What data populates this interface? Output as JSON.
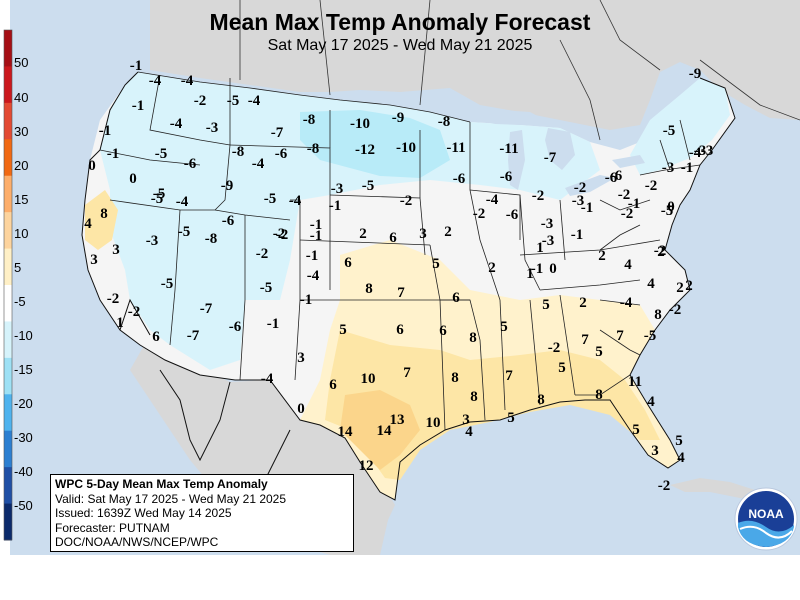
{
  "header": {
    "title": "Mean Max Temp Anomaly Forecast",
    "subtitle": "Sat May 17 2025 - Wed May 21 2025"
  },
  "legend": {
    "ticks": [
      "50",
      "40",
      "30",
      "20",
      "15",
      "10",
      "5",
      "-5",
      "-10",
      "-15",
      "-20",
      "-30",
      "-40",
      "-50"
    ],
    "colors": [
      "#a50f15",
      "#cb181d",
      "#e34a33",
      "#f16913",
      "#fdae6b",
      "#fdd49e",
      "#fff0c6",
      "#ffffff",
      "#d6f3fb",
      "#9ee1f5",
      "#4fb3ee",
      "#2c7fd1",
      "#1f4fa5",
      "#0b2a6b"
    ]
  },
  "map_colors": {
    "ocean": "#ccddee",
    "foreign_land": "#d8d8d8",
    "conus_neutral": "#f5f5f5",
    "cool_light": "#d8f3fb",
    "cool_mid": "#b8ebf8",
    "warm_light": "#fff2cc",
    "warm_mid": "#fde6a6",
    "warm_high": "#fbd58b"
  },
  "anomaly_values": [
    {
      "v": "-1"
    },
    {
      "v": "-4"
    },
    {
      "v": "-4"
    },
    {
      "v": "-1"
    },
    {
      "v": "-2"
    },
    {
      "v": "-5"
    },
    {
      "v": "-4"
    },
    {
      "v": "-1"
    },
    {
      "v": "-4"
    },
    {
      "v": "-3"
    },
    {
      "v": "-7"
    },
    {
      "v": "-8"
    },
    {
      "v": "-10"
    },
    {
      "v": "-9"
    },
    {
      "v": "-8"
    },
    {
      "v": "-1"
    },
    {
      "v": "-5"
    },
    {
      "v": "-6"
    },
    {
      "v": "-8"
    },
    {
      "v": "-6"
    },
    {
      "v": "-8"
    },
    {
      "v": "-12"
    },
    {
      "v": "-10"
    },
    {
      "v": "-11"
    },
    {
      "v": "-11"
    },
    {
      "v": "-7"
    },
    {
      "v": "-5"
    },
    {
      "v": "-9"
    },
    {
      "v": "-4"
    },
    {
      "v": "-6"
    },
    {
      "v": "-6"
    },
    {
      "v": "-2"
    },
    {
      "v": "-3"
    },
    {
      "v": "-3"
    },
    {
      "v": "0"
    },
    {
      "v": "0"
    },
    {
      "v": "-5"
    },
    {
      "v": "-9"
    },
    {
      "v": "-5"
    },
    {
      "v": "-4"
    },
    {
      "v": "-3"
    },
    {
      "v": "-5"
    },
    {
      "v": "-2"
    },
    {
      "v": "-4"
    },
    {
      "v": "-2"
    },
    {
      "v": "-6"
    },
    {
      "v": "-2"
    },
    {
      "v": "-6"
    },
    {
      "v": "-5"
    },
    {
      "v": "-4"
    },
    {
      "v": "-3"
    },
    {
      "v": "-6"
    },
    {
      "v": "-1"
    },
    {
      "v": "-2"
    },
    {
      "v": "-2"
    },
    {
      "v": "-1"
    },
    {
      "v": "-3"
    },
    {
      "v": "-2"
    },
    {
      "v": "-1"
    },
    {
      "v": "0"
    },
    {
      "v": "-5"
    },
    {
      "v": "-1"
    },
    {
      "v": "-2"
    },
    {
      "v": "-4"
    },
    {
      "v": "-1"
    },
    {
      "v": "-3"
    },
    {
      "v": "-1"
    },
    {
      "v": "-2"
    },
    {
      "v": "4"
    },
    {
      "v": "8"
    },
    {
      "v": "-6"
    },
    {
      "v": "-2"
    },
    {
      "v": "-1"
    },
    {
      "v": "2"
    },
    {
      "v": "6"
    },
    {
      "v": "3"
    },
    {
      "v": "2"
    },
    {
      "v": "-3"
    },
    {
      "v": "-5"
    },
    {
      "v": "-8"
    },
    {
      "v": "-2"
    },
    {
      "v": "-1"
    },
    {
      "v": "-3"
    },
    {
      "v": "3"
    },
    {
      "v": "-1"
    },
    {
      "v": "1"
    },
    {
      "v": "1"
    },
    {
      "v": "6"
    },
    {
      "v": "5"
    },
    {
      "v": "2"
    },
    {
      "v": "0"
    },
    {
      "v": "4"
    },
    {
      "v": "2"
    },
    {
      "v": "3"
    },
    {
      "v": "-4"
    },
    {
      "v": "2"
    },
    {
      "v": "2"
    },
    {
      "v": "-2"
    },
    {
      "v": "-5"
    },
    {
      "v": "8"
    },
    {
      "v": "7"
    },
    {
      "v": "6"
    },
    {
      "v": "4"
    },
    {
      "v": "2"
    },
    {
      "v": "-2"
    },
    {
      "v": "-5"
    },
    {
      "v": "-1"
    },
    {
      "v": "5"
    },
    {
      "v": "2"
    },
    {
      "v": "-4"
    },
    {
      "v": "-7"
    },
    {
      "v": "-6"
    },
    {
      "v": "1"
    },
    {
      "v": "-2"
    },
    {
      "v": "-1"
    },
    {
      "v": "5"
    },
    {
      "v": "6"
    },
    {
      "v": "6"
    },
    {
      "v": "8"
    },
    {
      "v": "5"
    },
    {
      "v": "7"
    },
    {
      "v": "-5"
    },
    {
      "v": "8"
    },
    {
      "v": "6"
    },
    {
      "v": "-2"
    },
    {
      "v": "5"
    },
    {
      "v": "7"
    },
    {
      "v": "3"
    },
    {
      "v": "-7"
    },
    {
      "v": "10"
    },
    {
      "v": "7"
    },
    {
      "v": "8"
    },
    {
      "v": "7"
    },
    {
      "v": "5"
    },
    {
      "v": "-4"
    },
    {
      "v": "6"
    },
    {
      "v": "11"
    },
    {
      "v": "8"
    },
    {
      "v": "4"
    },
    {
      "v": "8"
    },
    {
      "v": "0"
    },
    {
      "v": "14"
    },
    {
      "v": "14"
    },
    {
      "v": "13"
    },
    {
      "v": "10"
    },
    {
      "v": "3"
    },
    {
      "v": "5"
    },
    {
      "v": "8"
    },
    {
      "v": "5"
    },
    {
      "v": "5"
    },
    {
      "v": "3"
    },
    {
      "v": "4"
    },
    {
      "v": "12"
    },
    {
      "v": "4"
    },
    {
      "v": "-2"
    }
  ],
  "info_box": {
    "heading": "WPC 5-Day Mean Max Temp Anomaly",
    "valid": "Valid: Sat May 17 2025 - Wed May 21 2025",
    "issued": "Issued: 1639Z Wed May 14 2025",
    "forecaster": "Forecaster: PUTNAM",
    "agency": "DOC/NOAA/NWS/NCEP/WPC"
  },
  "logo": {
    "text": "NOAA"
  }
}
